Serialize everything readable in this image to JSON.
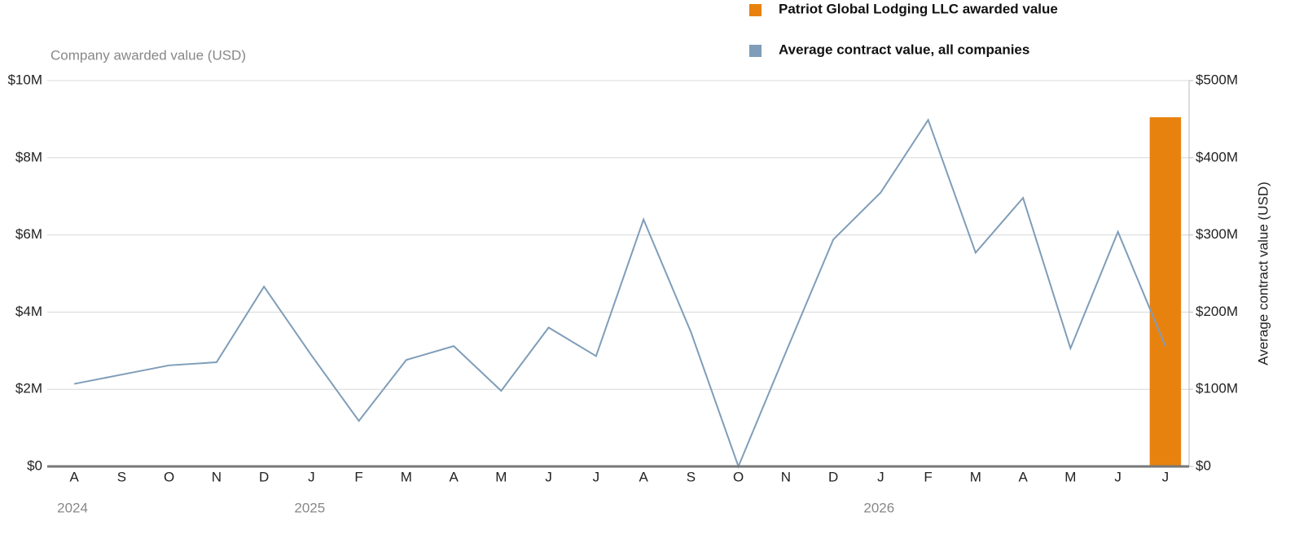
{
  "chart_data": {
    "type": "bar-line",
    "y_label": "Company awarded value (USD)",
    "y2_label": "Average contract value (USD)",
    "categories": [
      "A",
      "S",
      "O",
      "N",
      "D",
      "J",
      "F",
      "M",
      "A",
      "M",
      "J",
      "J",
      "A",
      "S",
      "O",
      "N",
      "D",
      "J",
      "F",
      "M",
      "A",
      "M",
      "J",
      "J"
    ],
    "year_labels": [
      "2024",
      null,
      null,
      null,
      null,
      "2025",
      null,
      null,
      null,
      null,
      null,
      null,
      null,
      null,
      null,
      null,
      null,
      "2026",
      null,
      null,
      null,
      null,
      null,
      null
    ],
    "series": [
      {
        "name": "Patriot Global Lodging LLC awarded value",
        "type": "bar",
        "color": "#e8820f",
        "values": [
          null,
          null,
          null,
          null,
          null,
          null,
          null,
          null,
          null,
          null,
          null,
          null,
          null,
          null,
          null,
          null,
          null,
          null,
          null,
          null,
          null,
          null,
          null,
          9.05
        ]
      },
      {
        "name": "Average contract value, all companies",
        "type": "line",
        "axis": "y2",
        "color": "#7f9db9",
        "values": [
          107,
          119,
          131,
          135,
          233,
          144,
          59,
          138,
          156,
          98,
          180,
          143,
          320,
          174,
          0,
          148,
          294,
          355,
          449,
          277,
          348,
          153,
          304,
          156
        ]
      }
    ],
    "ylim": [
      0,
      10
    ],
    "yticks": [
      {
        "value": 0,
        "label": "$0"
      },
      {
        "value": 2,
        "label": "$2M"
      },
      {
        "value": 4,
        "label": "$4M"
      },
      {
        "value": 6,
        "label": "$6M"
      },
      {
        "value": 8,
        "label": "$8M"
      },
      {
        "value": 10,
        "label": "$10M"
      }
    ],
    "y2lim": [
      0,
      500
    ],
    "y2ticks": [
      {
        "value": 0,
        "label": "$0"
      },
      {
        "value": 100,
        "label": "$100M"
      },
      {
        "value": 200,
        "label": "$200M"
      },
      {
        "value": 300,
        "label": "$300M"
      },
      {
        "value": 400,
        "label": "$400M"
      },
      {
        "value": 500,
        "label": "$500M"
      }
    ],
    "grid": true
  }
}
